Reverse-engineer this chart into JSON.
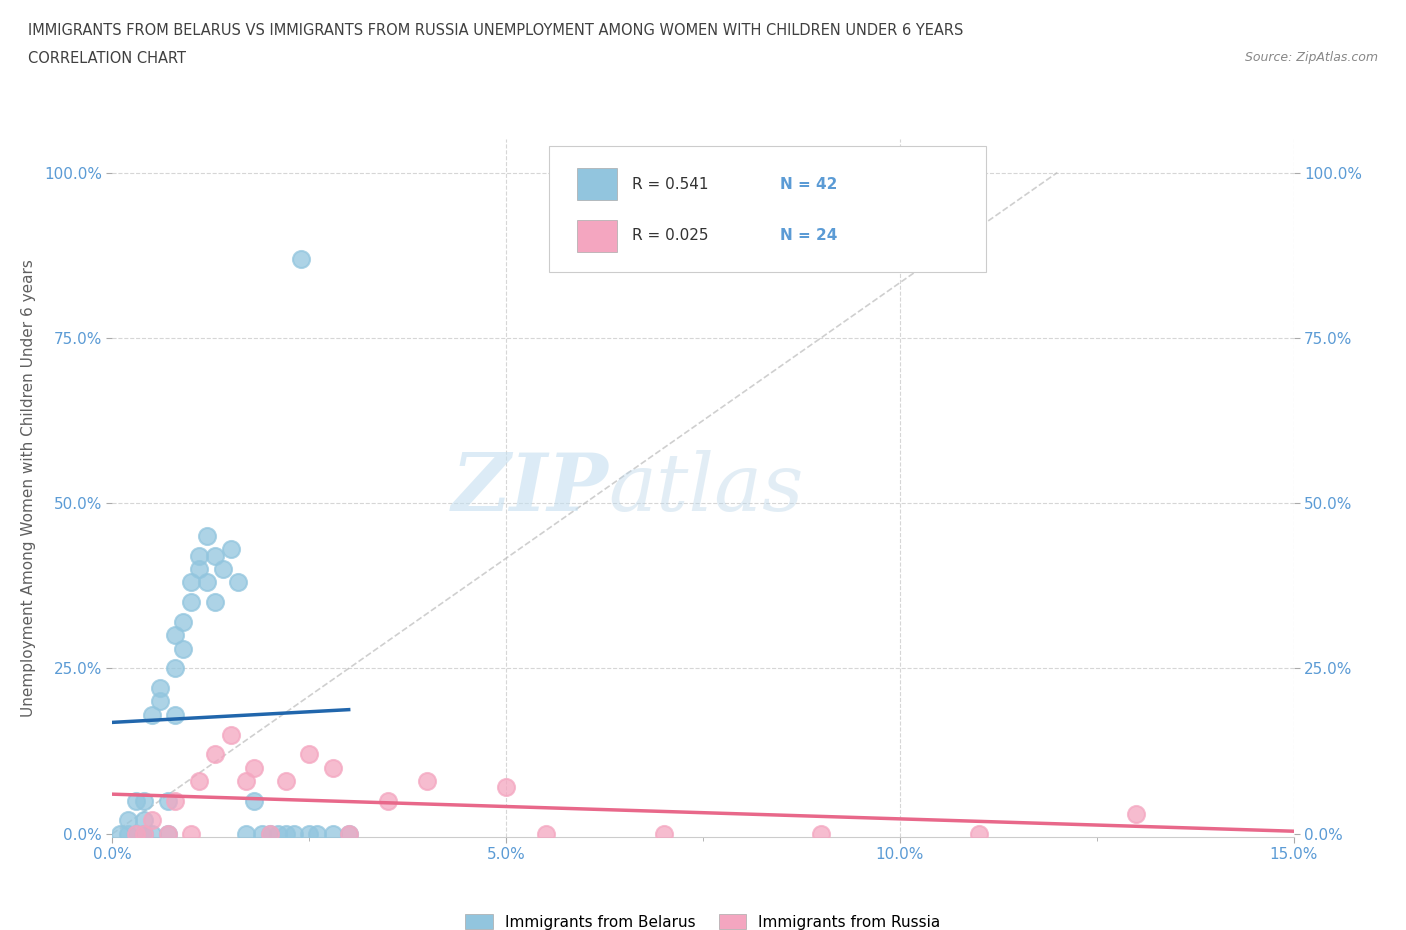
{
  "title_line1": "IMMIGRANTS FROM BELARUS VS IMMIGRANTS FROM RUSSIA UNEMPLOYMENT AMONG WOMEN WITH CHILDREN UNDER 6 YEARS",
  "title_line2": "CORRELATION CHART",
  "source": "Source: ZipAtlas.com",
  "ylabel": "Unemployment Among Women with Children Under 6 years",
  "legend_label1": "Immigrants from Belarus",
  "legend_label2": "Immigrants from Russia",
  "r1": "0.541",
  "n1": "42",
  "r2": "0.025",
  "n2": "24",
  "color1": "#92c5de",
  "color2": "#f4a6c0",
  "line1_color": "#2166ac",
  "line2_color": "#e8688a",
  "diag_color": "#bbbbbb",
  "xlim": [
    0.0,
    0.15
  ],
  "ylim": [
    -0.005,
    1.05
  ],
  "x_tick_labels": [
    "0.0%",
    "5.0%",
    "10.0%",
    "15.0%"
  ],
  "y_tick_labels": [
    "0.0%",
    "25.0%",
    "50.0%",
    "75.0%",
    "100.0%"
  ],
  "watermark_zip": "ZIP",
  "watermark_atlas": "atlas",
  "background_color": "#ffffff",
  "grid_color": "#cccccc",
  "tick_color": "#5b9bd5",
  "title_color": "#404040",
  "ylabel_color": "#606060",
  "source_color": "#888888",
  "belarus_x": [
    0.001,
    0.002,
    0.002,
    0.003,
    0.003,
    0.004,
    0.004,
    0.004,
    0.005,
    0.005,
    0.006,
    0.006,
    0.007,
    0.007,
    0.008,
    0.008,
    0.008,
    0.009,
    0.009,
    0.01,
    0.01,
    0.011,
    0.011,
    0.012,
    0.012,
    0.013,
    0.013,
    0.014,
    0.015,
    0.016,
    0.017,
    0.018,
    0.019,
    0.02,
    0.021,
    0.022,
    0.023,
    0.025,
    0.026,
    0.028,
    0.03,
    0.024
  ],
  "belarus_y": [
    0.0,
    0.0,
    0.02,
    0.0,
    0.05,
    0.0,
    0.02,
    0.05,
    0.0,
    0.18,
    0.2,
    0.22,
    0.0,
    0.05,
    0.18,
    0.25,
    0.3,
    0.28,
    0.32,
    0.35,
    0.38,
    0.4,
    0.42,
    0.45,
    0.38,
    0.42,
    0.35,
    0.4,
    0.43,
    0.38,
    0.0,
    0.05,
    0.0,
    0.0,
    0.0,
    0.0,
    0.0,
    0.0,
    0.0,
    0.0,
    0.0,
    0.87
  ],
  "russia_x": [
    0.003,
    0.004,
    0.005,
    0.007,
    0.008,
    0.01,
    0.011,
    0.013,
    0.015,
    0.017,
    0.018,
    0.02,
    0.022,
    0.025,
    0.028,
    0.03,
    0.035,
    0.04,
    0.05,
    0.055,
    0.07,
    0.09,
    0.11,
    0.13
  ],
  "russia_y": [
    0.0,
    0.0,
    0.02,
    0.0,
    0.05,
    0.0,
    0.08,
    0.12,
    0.15,
    0.08,
    0.1,
    0.0,
    0.08,
    0.12,
    0.1,
    0.0,
    0.05,
    0.08,
    0.07,
    0.0,
    0.0,
    0.0,
    0.0,
    0.03
  ]
}
